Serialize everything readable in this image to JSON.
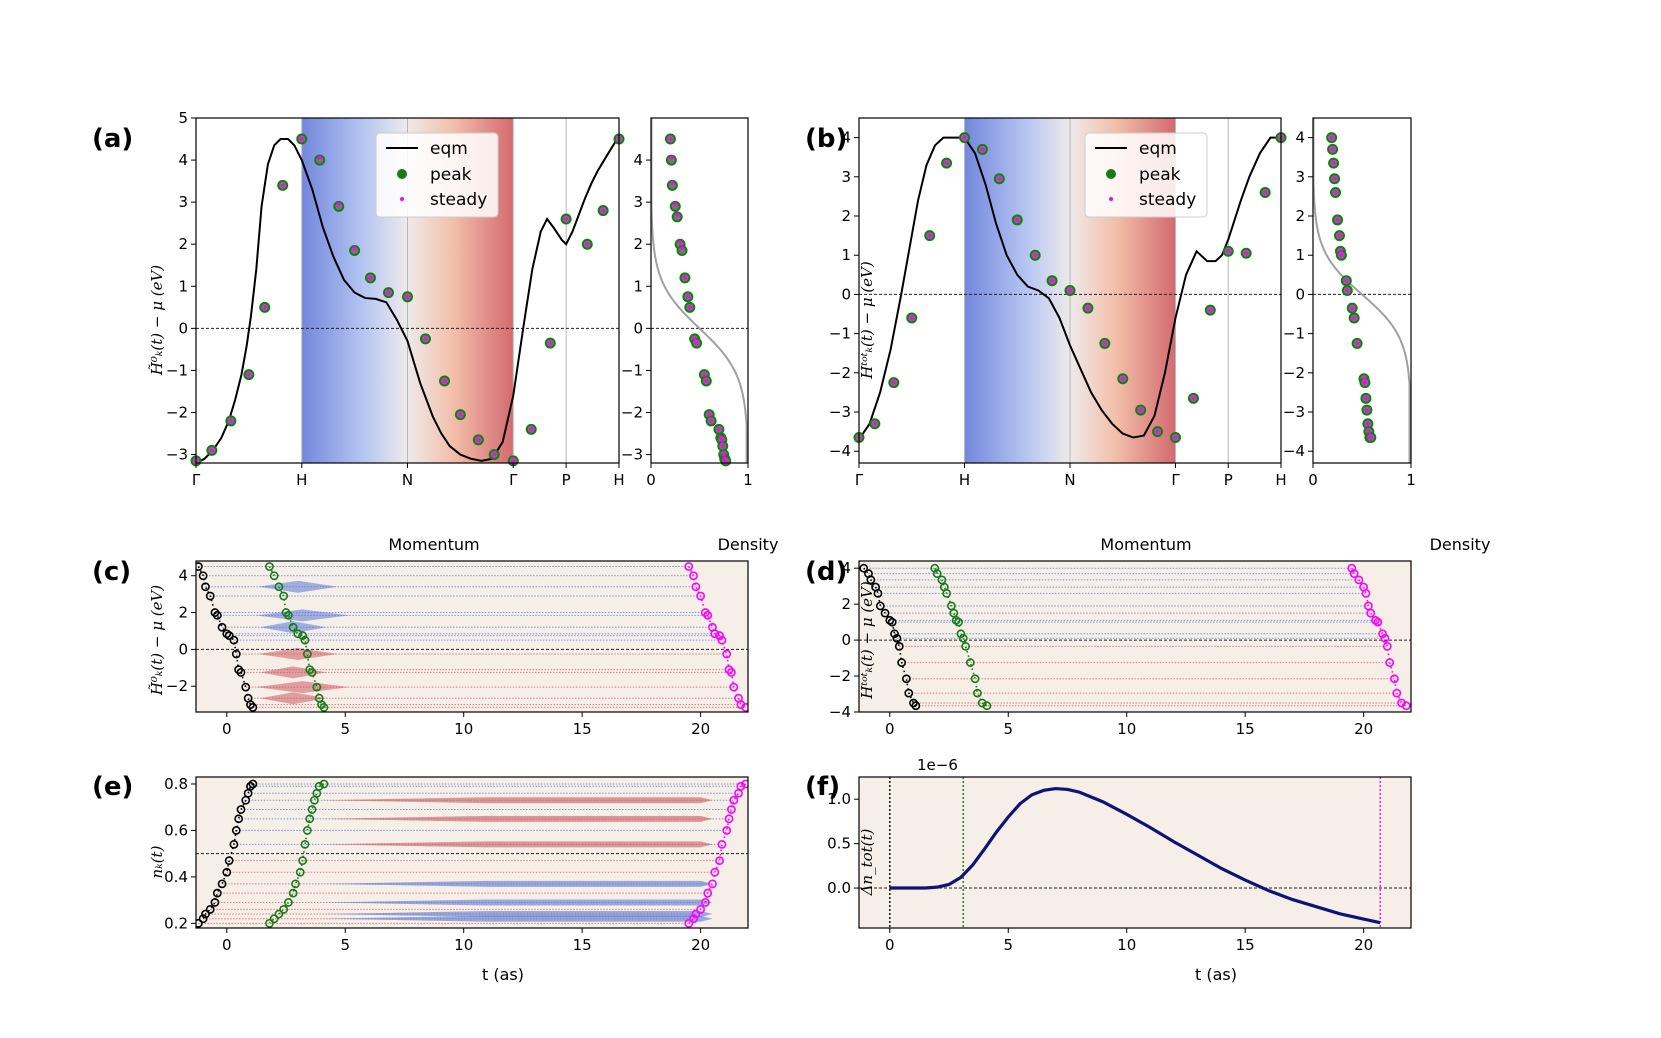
{
  "figure": {
    "colors": {
      "eqm": "#000000",
      "peak": "#1a7a1a",
      "steady": "#ff00ff",
      "panel_bg": "#f5efe8",
      "grid": "#b8b8b8",
      "fermi_line": "#222222",
      "cold": "#5a78d6",
      "hot": "#cc5b5e",
      "dn_line": "#0d1475"
    }
  },
  "chart_data": [
    {
      "id": "a",
      "type": "line",
      "panel_label": "(a)",
      "title": "",
      "xlabel": "Momentum",
      "ylabel": "H̃⁰ₖ(t) − μ (eV)",
      "x_ticks": [
        "Γ",
        "H",
        "N",
        "Γ",
        "P",
        "H"
      ],
      "ylim": [
        -3.2,
        5
      ],
      "y_ticks": [
        "−3",
        "−2",
        "−1",
        "0",
        "1",
        "2",
        "3",
        "4",
        "5"
      ],
      "legend": {
        "position": "top-center",
        "entries": [
          "eqm",
          "peak",
          "steady"
        ]
      },
      "eqm": {
        "x": [
          0,
          0.08,
          0.16,
          0.24,
          0.31,
          0.37,
          0.43,
          0.48,
          0.52,
          0.57,
          0.62,
          0.68,
          0.74,
          0.8,
          0.87,
          0.93,
          0.97,
          1.0,
          1.1,
          1.2,
          1.3,
          1.4,
          1.5,
          1.6,
          1.7,
          1.8,
          1.9,
          2.0,
          2.06,
          2.12,
          2.18,
          2.24,
          2.32,
          2.4,
          2.5,
          2.6,
          2.7,
          2.8,
          2.9,
          3.0,
          3.1,
          3.18,
          3.26,
          3.32,
          3.38,
          3.46,
          3.5,
          3.56,
          3.62,
          3.68,
          3.74,
          3.8,
          3.86,
          3.92,
          3.97,
          4.0
        ],
        "y": [
          -3.2,
          -3.1,
          -2.9,
          -2.6,
          -2.2,
          -1.7,
          -1.1,
          -0.4,
          0.3,
          1.4,
          2.9,
          3.9,
          4.35,
          4.5,
          4.5,
          4.35,
          4.15,
          4.0,
          3.3,
          2.4,
          1.7,
          1.15,
          0.85,
          0.72,
          0.7,
          0.62,
          0.2,
          -0.3,
          -0.8,
          -1.3,
          -1.7,
          -2.1,
          -2.5,
          -2.8,
          -3.0,
          -3.1,
          -3.15,
          -3.1,
          -2.7,
          -1.6,
          0.1,
          1.4,
          2.3,
          2.6,
          2.4,
          2.1,
          2.0,
          2.3,
          2.7,
          3.1,
          3.45,
          3.75,
          4.0,
          4.25,
          4.45,
          4.55
        ]
      },
      "peak": {
        "x": [
          0.0,
          0.15,
          0.33,
          0.5,
          0.65,
          0.82,
          1.0,
          1.17,
          1.35,
          1.5,
          1.65,
          1.82,
          2.0,
          2.17,
          2.35,
          2.5,
          2.67,
          2.82,
          3.0,
          3.17,
          3.35,
          3.5,
          3.7,
          3.85,
          4.0
        ],
        "y": [
          -3.15,
          -2.9,
          -2.2,
          -1.1,
          0.5,
          3.4,
          4.5,
          4.0,
          2.9,
          1.85,
          1.2,
          0.85,
          0.75,
          -0.25,
          -1.25,
          -2.05,
          -2.65,
          -3.0,
          -3.15,
          -2.4,
          -0.35,
          2.6,
          2.0,
          2.8,
          4.5
        ]
      },
      "steady": {
        "x": [
          0.0,
          0.15,
          0.33,
          0.5,
          0.65,
          0.82,
          1.0,
          1.17,
          1.35,
          1.5,
          1.65,
          1.82,
          2.0,
          2.17,
          2.35,
          2.5,
          2.67,
          2.82,
          3.0,
          3.17,
          3.35,
          3.5,
          3.7,
          3.85,
          4.0
        ],
        "y": [
          -3.15,
          -2.9,
          -2.2,
          -1.1,
          0.5,
          3.4,
          4.5,
          4.05,
          2.95,
          1.9,
          1.2,
          0.85,
          0.75,
          -0.25,
          -1.25,
          -2.05,
          -2.65,
          -3.0,
          -3.15,
          -2.4,
          -0.35,
          2.6,
          2.0,
          2.8,
          4.5
        ]
      },
      "density": {
        "xlabel": "Density",
        "x_ticks": [
          "0",
          "1"
        ],
        "xlim": [
          0,
          1
        ],
        "peak": {
          "x": [
            0.2,
            0.21,
            0.22,
            0.25,
            0.27,
            0.3,
            0.32,
            0.35,
            0.38,
            0.4,
            0.45,
            0.47,
            0.55,
            0.57,
            0.6,
            0.62,
            0.7,
            0.72,
            0.73,
            0.74,
            0.75,
            0.76,
            0.77
          ],
          "y": [
            4.5,
            4.0,
            3.4,
            2.9,
            2.65,
            2.0,
            1.85,
            1.2,
            0.75,
            0.5,
            -0.25,
            -0.35,
            -1.1,
            -1.25,
            -2.05,
            -2.2,
            -2.4,
            -2.6,
            -2.65,
            -2.8,
            -3.0,
            -3.1,
            -3.15
          ]
        },
        "steady": {
          "x": [
            0.2,
            0.21,
            0.22,
            0.25,
            0.27,
            0.3,
            0.32,
            0.35,
            0.38,
            0.4,
            0.45,
            0.47,
            0.55,
            0.57,
            0.6,
            0.62,
            0.7,
            0.72,
            0.73,
            0.74,
            0.75,
            0.76,
            0.77
          ],
          "y": [
            4.5,
            4.05,
            3.45,
            2.95,
            2.7,
            2.05,
            1.9,
            1.2,
            0.75,
            0.5,
            -0.25,
            -0.35,
            -1.1,
            -1.25,
            -2.05,
            -2.2,
            -2.4,
            -2.6,
            -2.65,
            -2.8,
            -3.0,
            -3.1,
            -3.15
          ]
        }
      }
    },
    {
      "id": "b",
      "type": "line",
      "panel_label": "(b)",
      "title": "",
      "xlabel": "Momentum",
      "ylabel": "Hᵗᵒᵗₖ(t) − μ (eV)",
      "x_ticks": [
        "Γ",
        "H",
        "N",
        "Γ",
        "P",
        "H"
      ],
      "ylim": [
        -4.3,
        4.5
      ],
      "y_ticks": [
        "−4",
        "−3",
        "−2",
        "−1",
        "0",
        "1",
        "2",
        "3",
        "4"
      ],
      "legend": {
        "position": "top-center",
        "entries": [
          "eqm",
          "peak",
          "steady"
        ]
      },
      "eqm": {
        "x": [
          0,
          0.1,
          0.2,
          0.3,
          0.4,
          0.48,
          0.56,
          0.64,
          0.72,
          0.8,
          0.88,
          0.95,
          1.0,
          1.1,
          1.2,
          1.3,
          1.4,
          1.5,
          1.6,
          1.7,
          1.8,
          1.9,
          2.0,
          2.1,
          2.2,
          2.3,
          2.4,
          2.5,
          2.6,
          2.7,
          2.8,
          2.9,
          3.0,
          3.1,
          3.2,
          3.3,
          3.38,
          3.44,
          3.5,
          3.56,
          3.62,
          3.7,
          3.8,
          3.9,
          4.0
        ],
        "y": [
          -3.7,
          -3.3,
          -2.5,
          -1.4,
          0.0,
          1.2,
          2.4,
          3.3,
          3.8,
          4.0,
          4.0,
          4.0,
          4.0,
          3.6,
          2.8,
          1.8,
          1.0,
          0.5,
          0.2,
          0.1,
          -0.1,
          -0.6,
          -1.3,
          -1.9,
          -2.5,
          -2.95,
          -3.3,
          -3.55,
          -3.65,
          -3.6,
          -3.1,
          -2.0,
          -0.6,
          0.5,
          1.1,
          0.85,
          0.85,
          1.0,
          1.4,
          1.9,
          2.4,
          3.0,
          3.6,
          4.0,
          4.0
        ]
      },
      "peak": {
        "x": [
          0.0,
          0.15,
          0.33,
          0.5,
          0.67,
          0.83,
          1.0,
          1.17,
          1.33,
          1.5,
          1.67,
          1.83,
          2.0,
          2.17,
          2.33,
          2.5,
          2.67,
          2.83,
          3.0,
          3.17,
          3.33,
          3.5,
          3.67,
          3.85,
          4.0
        ],
        "y": [
          -3.65,
          -3.3,
          -2.25,
          -0.6,
          1.5,
          3.35,
          4.0,
          3.7,
          2.95,
          1.9,
          1.0,
          0.35,
          0.1,
          -0.35,
          -1.25,
          -2.15,
          -2.95,
          -3.5,
          -3.65,
          -2.65,
          -0.4,
          1.1,
          1.05,
          2.6,
          4.0
        ]
      },
      "steady": {
        "x": [
          0.0,
          0.15,
          0.33,
          0.5,
          0.67,
          0.83,
          1.0,
          1.17,
          1.33,
          1.5,
          1.67,
          1.83,
          2.0,
          2.17,
          2.33,
          2.5,
          2.67,
          2.83,
          3.0,
          3.17,
          3.33,
          3.5,
          3.67,
          3.85,
          4.0
        ],
        "y": [
          -3.65,
          -3.3,
          -2.25,
          -0.6,
          1.5,
          3.35,
          4.0,
          3.7,
          2.95,
          1.9,
          1.0,
          0.35,
          0.1,
          -0.35,
          -1.25,
          -2.15,
          -2.95,
          -3.5,
          -3.65,
          -2.65,
          -0.4,
          1.1,
          1.05,
          2.6,
          4.0
        ]
      },
      "density": {
        "xlabel": "Density",
        "x_ticks": [
          "0",
          "1"
        ],
        "xlim": [
          0,
          1
        ],
        "peak": {
          "x": [
            0.19,
            0.2,
            0.21,
            0.22,
            0.23,
            0.25,
            0.27,
            0.28,
            0.29,
            0.34,
            0.35,
            0.4,
            0.42,
            0.45,
            0.52,
            0.53,
            0.54,
            0.55,
            0.56,
            0.57,
            0.58,
            0.59
          ],
          "y": [
            4.0,
            3.7,
            3.35,
            2.95,
            2.6,
            1.9,
            1.5,
            1.1,
            1.0,
            0.35,
            0.1,
            -0.35,
            -0.6,
            -1.25,
            -2.15,
            -2.25,
            -2.65,
            -2.95,
            -3.3,
            -3.5,
            -3.65,
            -3.65
          ]
        },
        "steady": {
          "x": [
            0.19,
            0.2,
            0.21,
            0.22,
            0.23,
            0.25,
            0.27,
            0.28,
            0.29,
            0.34,
            0.35,
            0.4,
            0.42,
            0.45,
            0.52,
            0.53,
            0.54,
            0.55,
            0.56,
            0.57,
            0.58,
            0.59
          ],
          "y": [
            4.0,
            3.7,
            3.35,
            2.95,
            2.6,
            1.9,
            1.5,
            1.1,
            1.0,
            0.35,
            0.1,
            -0.35,
            -0.6,
            -1.25,
            -2.15,
            -2.25,
            -2.65,
            -2.95,
            -3.3,
            -3.5,
            -3.65,
            -3.65
          ]
        }
      }
    },
    {
      "id": "c",
      "type": "scatter",
      "panel_label": "(c)",
      "title": "",
      "xlabel": "",
      "ylabel": "H̃⁰ₖ(t) − μ (eV)",
      "xlim": [
        -1.3,
        22
      ],
      "x_ticks": [
        "0",
        "5",
        "10",
        "15",
        "20"
      ],
      "ylim": [
        -3.4,
        4.8
      ],
      "y_ticks": [
        "−2",
        "0",
        "2",
        "4"
      ],
      "levels": [
        4.5,
        4.0,
        3.4,
        2.9,
        2.0,
        1.85,
        1.2,
        0.85,
        0.75,
        0.5,
        -0.25,
        -1.1,
        -1.25,
        -2.05,
        -2.65,
        -3.0,
        -3.15
      ],
      "peak_t": [
        1.8,
        2.0,
        2.2,
        2.4,
        2.5,
        2.6,
        2.8,
        3.0,
        3.2,
        3.3,
        3.4,
        3.5,
        3.6,
        3.8,
        3.9,
        4.0,
        4.1
      ],
      "steady_t": [
        19.5,
        19.7,
        19.8,
        20.0,
        20.2,
        20.3,
        20.5,
        20.6,
        20.8,
        20.9,
        21.1,
        21.2,
        21.3,
        21.4,
        21.6,
        21.7,
        21.9
      ],
      "eqm_t": [
        -1.2,
        -1.0,
        -0.9,
        -0.7,
        -0.5,
        -0.4,
        -0.2,
        0.0,
        0.1,
        0.3,
        0.4,
        0.5,
        0.6,
        0.8,
        0.9,
        1.0,
        1.1
      ],
      "spindles": [
        {
          "y": 3.4,
          "c": "cold",
          "w": 1.2
        },
        {
          "y": 1.85,
          "c": "cold",
          "w": 1.4
        },
        {
          "y": 1.2,
          "c": "cold",
          "w": 1.0
        },
        {
          "y": -0.25,
          "c": "hot",
          "w": 1.2
        },
        {
          "y": -1.25,
          "c": "hot",
          "w": 1.0
        },
        {
          "y": -2.05,
          "c": "hot",
          "w": 1.4
        },
        {
          "y": -2.65,
          "c": "hot",
          "w": 1.0
        }
      ]
    },
    {
      "id": "d",
      "type": "scatter",
      "panel_label": "(d)",
      "title": "",
      "xlabel": "",
      "ylabel": "Hᵗᵒᵗₖ(t) − μ (eV)",
      "xlim": [
        -1.3,
        22
      ],
      "x_ticks": [
        "0",
        "5",
        "10",
        "15",
        "20"
      ],
      "ylim": [
        -4.0,
        4.4
      ],
      "y_ticks": [
        "−4",
        "−2",
        "0",
        "2",
        "4"
      ],
      "levels": [
        4.0,
        3.7,
        3.35,
        2.95,
        2.6,
        1.9,
        1.5,
        1.1,
        1.0,
        0.35,
        0.1,
        -0.35,
        -1.25,
        -2.15,
        -2.95,
        -3.5,
        -3.65
      ],
      "peak_t": [
        1.9,
        2.0,
        2.2,
        2.3,
        2.4,
        2.6,
        2.7,
        2.8,
        2.9,
        3.0,
        3.1,
        3.2,
        3.4,
        3.6,
        3.7,
        3.9,
        4.1
      ],
      "steady_t": [
        19.5,
        19.6,
        19.8,
        20.0,
        20.1,
        20.2,
        20.3,
        20.5,
        20.6,
        20.8,
        20.9,
        21.0,
        21.1,
        21.3,
        21.4,
        21.6,
        21.8
      ],
      "eqm_t": [
        -1.1,
        -0.9,
        -0.8,
        -0.6,
        -0.5,
        -0.4,
        -0.2,
        0.0,
        0.1,
        0.2,
        0.3,
        0.4,
        0.5,
        0.7,
        0.8,
        1.0,
        1.1
      ],
      "spindles": []
    },
    {
      "id": "e",
      "type": "scatter",
      "panel_label": "(e)",
      "title": "",
      "xlabel": "t (as)",
      "ylabel": "nₖ(t)",
      "xlim": [
        -1.3,
        22
      ],
      "x_ticks": [
        "0",
        "5",
        "10",
        "15",
        "20"
      ],
      "ylim": [
        0.18,
        0.83
      ],
      "y_ticks": [
        "0.2",
        "0.4",
        "0.6",
        "0.8"
      ],
      "fermi": 0.5,
      "levels": [
        0.8,
        0.79,
        0.76,
        0.73,
        0.69,
        0.65,
        0.6,
        0.54,
        0.47,
        0.42,
        0.37,
        0.33,
        0.29,
        0.26,
        0.24,
        0.22,
        0.2
      ],
      "peak_t": [
        4.1,
        3.9,
        3.8,
        3.7,
        3.6,
        3.5,
        3.4,
        3.3,
        3.2,
        3.1,
        2.9,
        2.8,
        2.6,
        2.4,
        2.2,
        2.0,
        1.8
      ],
      "steady_t": [
        21.9,
        21.7,
        21.6,
        21.4,
        21.3,
        21.2,
        21.1,
        20.9,
        20.8,
        20.6,
        20.5,
        20.3,
        20.2,
        20.0,
        19.8,
        19.7,
        19.5
      ],
      "eqm_t": [
        1.1,
        1.0,
        0.9,
        0.8,
        0.6,
        0.5,
        0.4,
        0.3,
        0.1,
        0.0,
        -0.2,
        -0.4,
        -0.5,
        -0.7,
        -0.9,
        -1.0,
        -1.2
      ],
      "bands": [
        {
          "y": 0.73,
          "c": "hot"
        },
        {
          "y": 0.65,
          "c": "hot"
        },
        {
          "y": 0.54,
          "c": "hot"
        },
        {
          "y": 0.37,
          "c": "cold"
        },
        {
          "y": 0.29,
          "c": "cold"
        },
        {
          "y": 0.24,
          "c": "cold"
        },
        {
          "y": 0.22,
          "c": "cold"
        }
      ]
    },
    {
      "id": "f",
      "type": "line",
      "panel_label": "(f)",
      "title": "",
      "xlabel": "t (as)",
      "ylabel": "Δn_tot(t)",
      "offset_text": "1e−6",
      "xlim": [
        -1.3,
        22
      ],
      "x_ticks": [
        "0",
        "5",
        "10",
        "15",
        "20"
      ],
      "ylim": [
        -0.45,
        1.25
      ],
      "y_ticks": [
        "0.0",
        "0.5",
        "1.0"
      ],
      "vlines": [
        {
          "x": 0,
          "color": "#000000"
        },
        {
          "x": 3.1,
          "color": "#1a7a1a"
        },
        {
          "x": 20.7,
          "color": "#ff00ff"
        }
      ],
      "series": [
        {
          "name": "Δn_tot",
          "x": [
            0,
            0.5,
            1,
            1.5,
            2,
            2.5,
            3,
            3.5,
            4,
            4.5,
            5,
            5.5,
            6,
            6.5,
            7,
            7.5,
            8,
            9,
            10,
            11,
            12,
            13,
            14,
            15,
            16,
            17,
            18,
            19,
            20,
            20.7
          ],
          "values": [
            0.0,
            0.0,
            0.0,
            0.0,
            0.01,
            0.04,
            0.12,
            0.26,
            0.44,
            0.63,
            0.8,
            0.95,
            1.05,
            1.1,
            1.12,
            1.11,
            1.08,
            0.97,
            0.83,
            0.68,
            0.52,
            0.37,
            0.22,
            0.09,
            -0.03,
            -0.13,
            -0.21,
            -0.29,
            -0.35,
            -0.39
          ]
        }
      ]
    }
  ]
}
